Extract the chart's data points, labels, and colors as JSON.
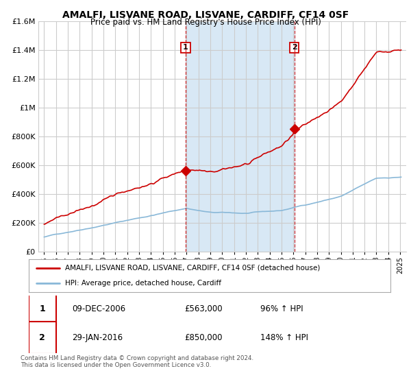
{
  "title": "AMALFI, LISVANE ROAD, LISVANE, CARDIFF, CF14 0SF",
  "subtitle": "Price paid vs. HM Land Registry's House Price Index (HPI)",
  "ylim": [
    0,
    1600000
  ],
  "yticks": [
    0,
    200000,
    400000,
    600000,
    800000,
    1000000,
    1200000,
    1400000,
    1600000
  ],
  "ytick_labels": [
    "£0",
    "£200K",
    "£400K",
    "£600K",
    "£800K",
    "£1M",
    "£1.2M",
    "£1.4M",
    "£1.6M"
  ],
  "plot_bg_color": "#ffffff",
  "grid_color": "#cccccc",
  "shade_color": "#d8e8f5",
  "line1_color": "#cc0000",
  "line2_color": "#89b8d8",
  "sale1_year": 2006.92,
  "sale1_price": 563000,
  "sale2_year": 2016.08,
  "sale2_price": 850000,
  "legend_label1": "AMALFI, LISVANE ROAD, LISVANE, CARDIFF, CF14 0SF (detached house)",
  "legend_label2": "HPI: Average price, detached house, Cardiff",
  "table_row1": [
    "1",
    "09-DEC-2006",
    "£563,000",
    "96% ↑ HPI"
  ],
  "table_row2": [
    "2",
    "29-JAN-2016",
    "£850,000",
    "148% ↑ HPI"
  ],
  "footer": "Contains HM Land Registry data © Crown copyright and database right 2024.\nThis data is licensed under the Open Government Licence v3.0.",
  "xmin": 1994.5,
  "xmax": 2025.5
}
